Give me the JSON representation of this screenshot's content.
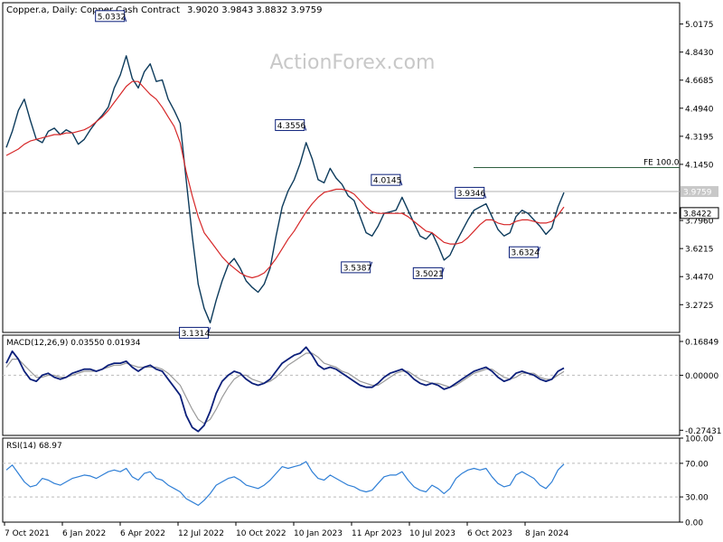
{
  "header": {
    "symbol_info": "Copper.a, Daily: Copper Cash Contract",
    "ohlc": "3.9020 3.9843 3.8832 3.9759"
  },
  "watermark": "ActionForex.com",
  "colors": {
    "price": "#0d3b5c",
    "ma": "#d62728",
    "macd": "#0b1f7a",
    "macd_signal": "#9a9a9a",
    "rsi": "#2f7fd6",
    "grid": "#000000",
    "label_border": "#0b1f7a"
  },
  "x_axis": {
    "labels": [
      "7 Oct 2021",
      "6 Jan 2022",
      "6 Apr 2022",
      "12 Jul 2022",
      "10 Oct 2022",
      "10 Jan 2023",
      "11 Apr 2023",
      "10 Jul 2023",
      "6 Oct 2023",
      "8 Jan 2024"
    ]
  },
  "chart_data": [
    {
      "type": "line",
      "title": "Copper.a, Daily: Copper Cash Contract",
      "y_ticks": [
        "5.0175",
        "4.8430",
        "4.6685",
        "4.4940",
        "4.3195",
        "4.1450",
        "3.9759",
        "3.8422",
        "3.7960",
        "3.6215",
        "3.4470",
        "3.2725"
      ],
      "ylim": [
        3.1,
        5.15
      ],
      "current_price": 3.9759,
      "current_price_label": "3.9759",
      "dashed_level": 3.8422,
      "dashed_level_label": "3.8422",
      "fe_level": 4.125,
      "fe_label": "FE 100.0",
      "series": [
        {
          "name": "Close",
          "values": [
            4.25,
            4.35,
            4.48,
            4.55,
            4.42,
            4.3,
            4.28,
            4.35,
            4.37,
            4.33,
            4.36,
            4.34,
            4.27,
            4.3,
            4.36,
            4.41,
            4.45,
            4.5,
            4.62,
            4.7,
            4.82,
            4.68,
            4.62,
            4.72,
            4.77,
            4.66,
            4.67,
            4.55,
            4.48,
            4.4,
            4.05,
            3.7,
            3.4,
            3.25,
            3.16,
            3.3,
            3.42,
            3.52,
            3.56,
            3.5,
            3.42,
            3.38,
            3.35,
            3.4,
            3.5,
            3.7,
            3.88,
            3.98,
            4.05,
            4.15,
            4.28,
            4.18,
            4.05,
            4.03,
            4.12,
            4.06,
            4.02,
            3.95,
            3.92,
            3.82,
            3.72,
            3.7,
            3.76,
            3.84,
            3.85,
            3.86,
            3.94,
            3.86,
            3.78,
            3.7,
            3.68,
            3.72,
            3.64,
            3.55,
            3.58,
            3.66,
            3.73,
            3.8,
            3.86,
            3.88,
            3.9,
            3.82,
            3.74,
            3.7,
            3.72,
            3.82,
            3.86,
            3.84,
            3.8,
            3.76,
            3.71,
            3.75,
            3.88,
            3.97
          ]
        },
        {
          "name": "Moving average",
          "values": [
            4.2,
            4.22,
            4.24,
            4.27,
            4.29,
            4.3,
            4.31,
            4.32,
            4.33,
            4.33,
            4.34,
            4.34,
            4.35,
            4.36,
            4.38,
            4.41,
            4.44,
            4.48,
            4.53,
            4.58,
            4.63,
            4.66,
            4.66,
            4.62,
            4.58,
            4.55,
            4.5,
            4.44,
            4.38,
            4.28,
            4.1,
            3.95,
            3.82,
            3.72,
            3.67,
            3.62,
            3.57,
            3.53,
            3.5,
            3.47,
            3.45,
            3.44,
            3.45,
            3.47,
            3.51,
            3.56,
            3.62,
            3.68,
            3.73,
            3.79,
            3.85,
            3.9,
            3.94,
            3.97,
            3.98,
            3.99,
            3.99,
            3.98,
            3.96,
            3.92,
            3.88,
            3.85,
            3.84,
            3.84,
            3.84,
            3.84,
            3.84,
            3.82,
            3.79,
            3.76,
            3.73,
            3.72,
            3.69,
            3.66,
            3.65,
            3.65,
            3.66,
            3.69,
            3.73,
            3.77,
            3.8,
            3.8,
            3.78,
            3.77,
            3.77,
            3.79,
            3.8,
            3.8,
            3.79,
            3.78,
            3.78,
            3.79,
            3.83,
            3.88
          ]
        }
      ],
      "annotations": [
        {
          "label": "5.0332",
          "index": 20,
          "value": 5.0332
        },
        {
          "label": "3.1314",
          "index": 34,
          "value": 3.1314
        },
        {
          "label": "4.3556",
          "index": 50,
          "value": 4.3556
        },
        {
          "label": "3.5387",
          "index": 61,
          "value": 3.5387
        },
        {
          "label": "4.0145",
          "index": 66,
          "value": 4.0145
        },
        {
          "label": "3.5021",
          "index": 73,
          "value": 3.5021
        },
        {
          "label": "3.9346",
          "index": 80,
          "value": 3.9346
        },
        {
          "label": "3.6324",
          "index": 89,
          "value": 3.6324
        }
      ]
    },
    {
      "type": "line",
      "title": "MACD(12,26,9) 0.03550 0.01934",
      "y_ticks": [
        "0.16849",
        "0.00000",
        "-0.27431"
      ],
      "ylim": [
        -0.3,
        0.2
      ],
      "series": [
        {
          "name": "MACD",
          "values": [
            0.06,
            0.12,
            0.08,
            0.02,
            -0.02,
            -0.03,
            0.0,
            0.01,
            -0.01,
            -0.02,
            -0.01,
            0.01,
            0.02,
            0.03,
            0.03,
            0.02,
            0.03,
            0.05,
            0.06,
            0.06,
            0.07,
            0.04,
            0.02,
            0.04,
            0.05,
            0.03,
            0.02,
            -0.02,
            -0.06,
            -0.1,
            -0.2,
            -0.26,
            -0.28,
            -0.25,
            -0.18,
            -0.09,
            -0.03,
            0.0,
            0.02,
            0.01,
            -0.02,
            -0.04,
            -0.05,
            -0.04,
            -0.02,
            0.02,
            0.06,
            0.08,
            0.1,
            0.11,
            0.14,
            0.1,
            0.05,
            0.03,
            0.04,
            0.03,
            0.01,
            -0.01,
            -0.03,
            -0.05,
            -0.06,
            -0.06,
            -0.04,
            -0.01,
            0.01,
            0.02,
            0.03,
            0.01,
            -0.02,
            -0.04,
            -0.05,
            -0.04,
            -0.05,
            -0.07,
            -0.06,
            -0.04,
            -0.02,
            0.0,
            0.02,
            0.03,
            0.04,
            0.02,
            -0.01,
            -0.03,
            -0.02,
            0.01,
            0.02,
            0.01,
            0.0,
            -0.02,
            -0.03,
            -0.02,
            0.02,
            0.036
          ]
        },
        {
          "name": "Signal",
          "values": [
            0.04,
            0.08,
            0.08,
            0.05,
            0.02,
            -0.01,
            -0.01,
            0.0,
            0.0,
            -0.01,
            -0.01,
            0.0,
            0.01,
            0.02,
            0.02,
            0.02,
            0.03,
            0.04,
            0.05,
            0.05,
            0.06,
            0.05,
            0.04,
            0.04,
            0.04,
            0.04,
            0.03,
            0.01,
            -0.02,
            -0.05,
            -0.11,
            -0.17,
            -0.22,
            -0.24,
            -0.22,
            -0.17,
            -0.11,
            -0.06,
            -0.02,
            0.0,
            0.0,
            -0.02,
            -0.03,
            -0.04,
            -0.03,
            -0.01,
            0.02,
            0.05,
            0.07,
            0.09,
            0.11,
            0.11,
            0.09,
            0.06,
            0.05,
            0.04,
            0.02,
            0.01,
            -0.01,
            -0.03,
            -0.04,
            -0.05,
            -0.05,
            -0.03,
            -0.01,
            0.01,
            0.02,
            0.02,
            0.0,
            -0.02,
            -0.03,
            -0.04,
            -0.04,
            -0.05,
            -0.06,
            -0.05,
            -0.03,
            -0.01,
            0.01,
            0.02,
            0.03,
            0.03,
            0.01,
            -0.01,
            -0.02,
            -0.01,
            0.01,
            0.01,
            0.01,
            -0.01,
            -0.02,
            -0.02,
            0.0,
            0.019
          ]
        }
      ]
    },
    {
      "type": "line",
      "title": "RSI(14) 68.97",
      "y_ticks": [
        "100.00",
        "70.00",
        "30.00",
        "0.00"
      ],
      "ylim": [
        0,
        100
      ],
      "levels": [
        70,
        30
      ],
      "series": [
        {
          "name": "RSI",
          "values": [
            62,
            68,
            58,
            48,
            42,
            44,
            52,
            50,
            46,
            44,
            48,
            52,
            54,
            56,
            55,
            52,
            56,
            60,
            62,
            60,
            64,
            54,
            50,
            58,
            60,
            52,
            50,
            44,
            40,
            36,
            28,
            24,
            20,
            26,
            34,
            44,
            48,
            52,
            54,
            50,
            44,
            42,
            40,
            44,
            50,
            58,
            66,
            64,
            66,
            68,
            72,
            60,
            52,
            50,
            56,
            52,
            48,
            44,
            42,
            38,
            36,
            38,
            46,
            54,
            56,
            56,
            60,
            50,
            42,
            38,
            36,
            44,
            40,
            34,
            40,
            52,
            58,
            62,
            64,
            62,
            64,
            54,
            46,
            42,
            44,
            56,
            60,
            56,
            52,
            44,
            40,
            48,
            62,
            69
          ]
        }
      ]
    }
  ]
}
